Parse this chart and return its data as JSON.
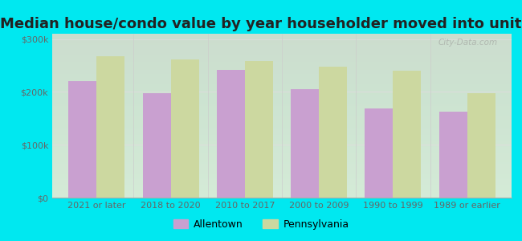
{
  "title": "Median house/condo value by year householder moved into unit",
  "categories": [
    "2021 or later",
    "2018 to 2020",
    "2010 to 2017",
    "2000 to 2009",
    "1990 to 1999",
    "1989 or earlier"
  ],
  "allentown": [
    220000,
    197000,
    242000,
    205000,
    168000,
    163000
  ],
  "pennsylvania": [
    268000,
    262000,
    258000,
    248000,
    240000,
    197000
  ],
  "allentown_color": "#c9a0d0",
  "pennsylvania_color": "#ccd8a0",
  "background_outer": "#00e8f0",
  "background_inner_top": "#f5fff5",
  "background_inner_bottom": "#e8f5e0",
  "ylim": [
    0,
    310000
  ],
  "yticks": [
    0,
    100000,
    200000,
    300000
  ],
  "ytick_labels": [
    "$0",
    "$100k",
    "$200k",
    "$300k"
  ],
  "title_fontsize": 13,
  "tick_color": "#666666",
  "legend_labels": [
    "Allentown",
    "Pennsylvania"
  ],
  "bar_width": 0.38,
  "grid_color": "#dddddd"
}
